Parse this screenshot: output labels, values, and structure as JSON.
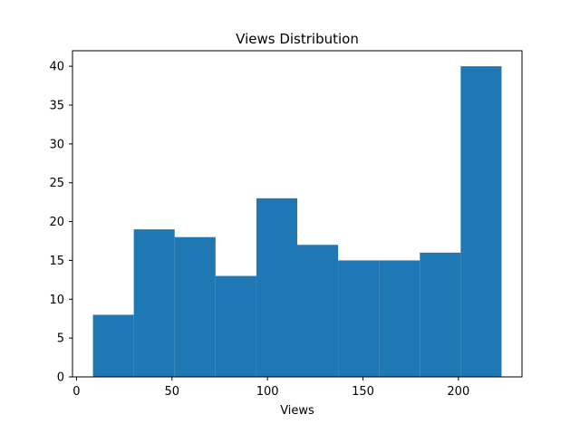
{
  "chart_data": {
    "type": "bar",
    "subtype": "histogram",
    "title": "Views Distribution",
    "xlabel": "Views",
    "ylabel": "",
    "bins": [
      {
        "start": 8.6,
        "end": 30.0,
        "count": 8
      },
      {
        "start": 30.0,
        "end": 51.4,
        "count": 19
      },
      {
        "start": 51.4,
        "end": 72.8,
        "count": 18
      },
      {
        "start": 72.8,
        "end": 94.2,
        "count": 13
      },
      {
        "start": 94.2,
        "end": 115.6,
        "count": 23
      },
      {
        "start": 115.6,
        "end": 137.0,
        "count": 17
      },
      {
        "start": 137.0,
        "end": 158.4,
        "count": 15
      },
      {
        "start": 158.4,
        "end": 179.8,
        "count": 15
      },
      {
        "start": 179.8,
        "end": 201.2,
        "count": 16
      },
      {
        "start": 201.2,
        "end": 222.6,
        "count": 40
      }
    ],
    "xlim": [
      -2.1,
      233.3
    ],
    "ylim": [
      0,
      42
    ],
    "xticks": [
      0,
      50,
      100,
      150,
      200
    ],
    "yticks": [
      0,
      5,
      10,
      15,
      20,
      25,
      30,
      35,
      40
    ],
    "bar_color": "#1f77b4",
    "grid": false,
    "legend": "none"
  }
}
